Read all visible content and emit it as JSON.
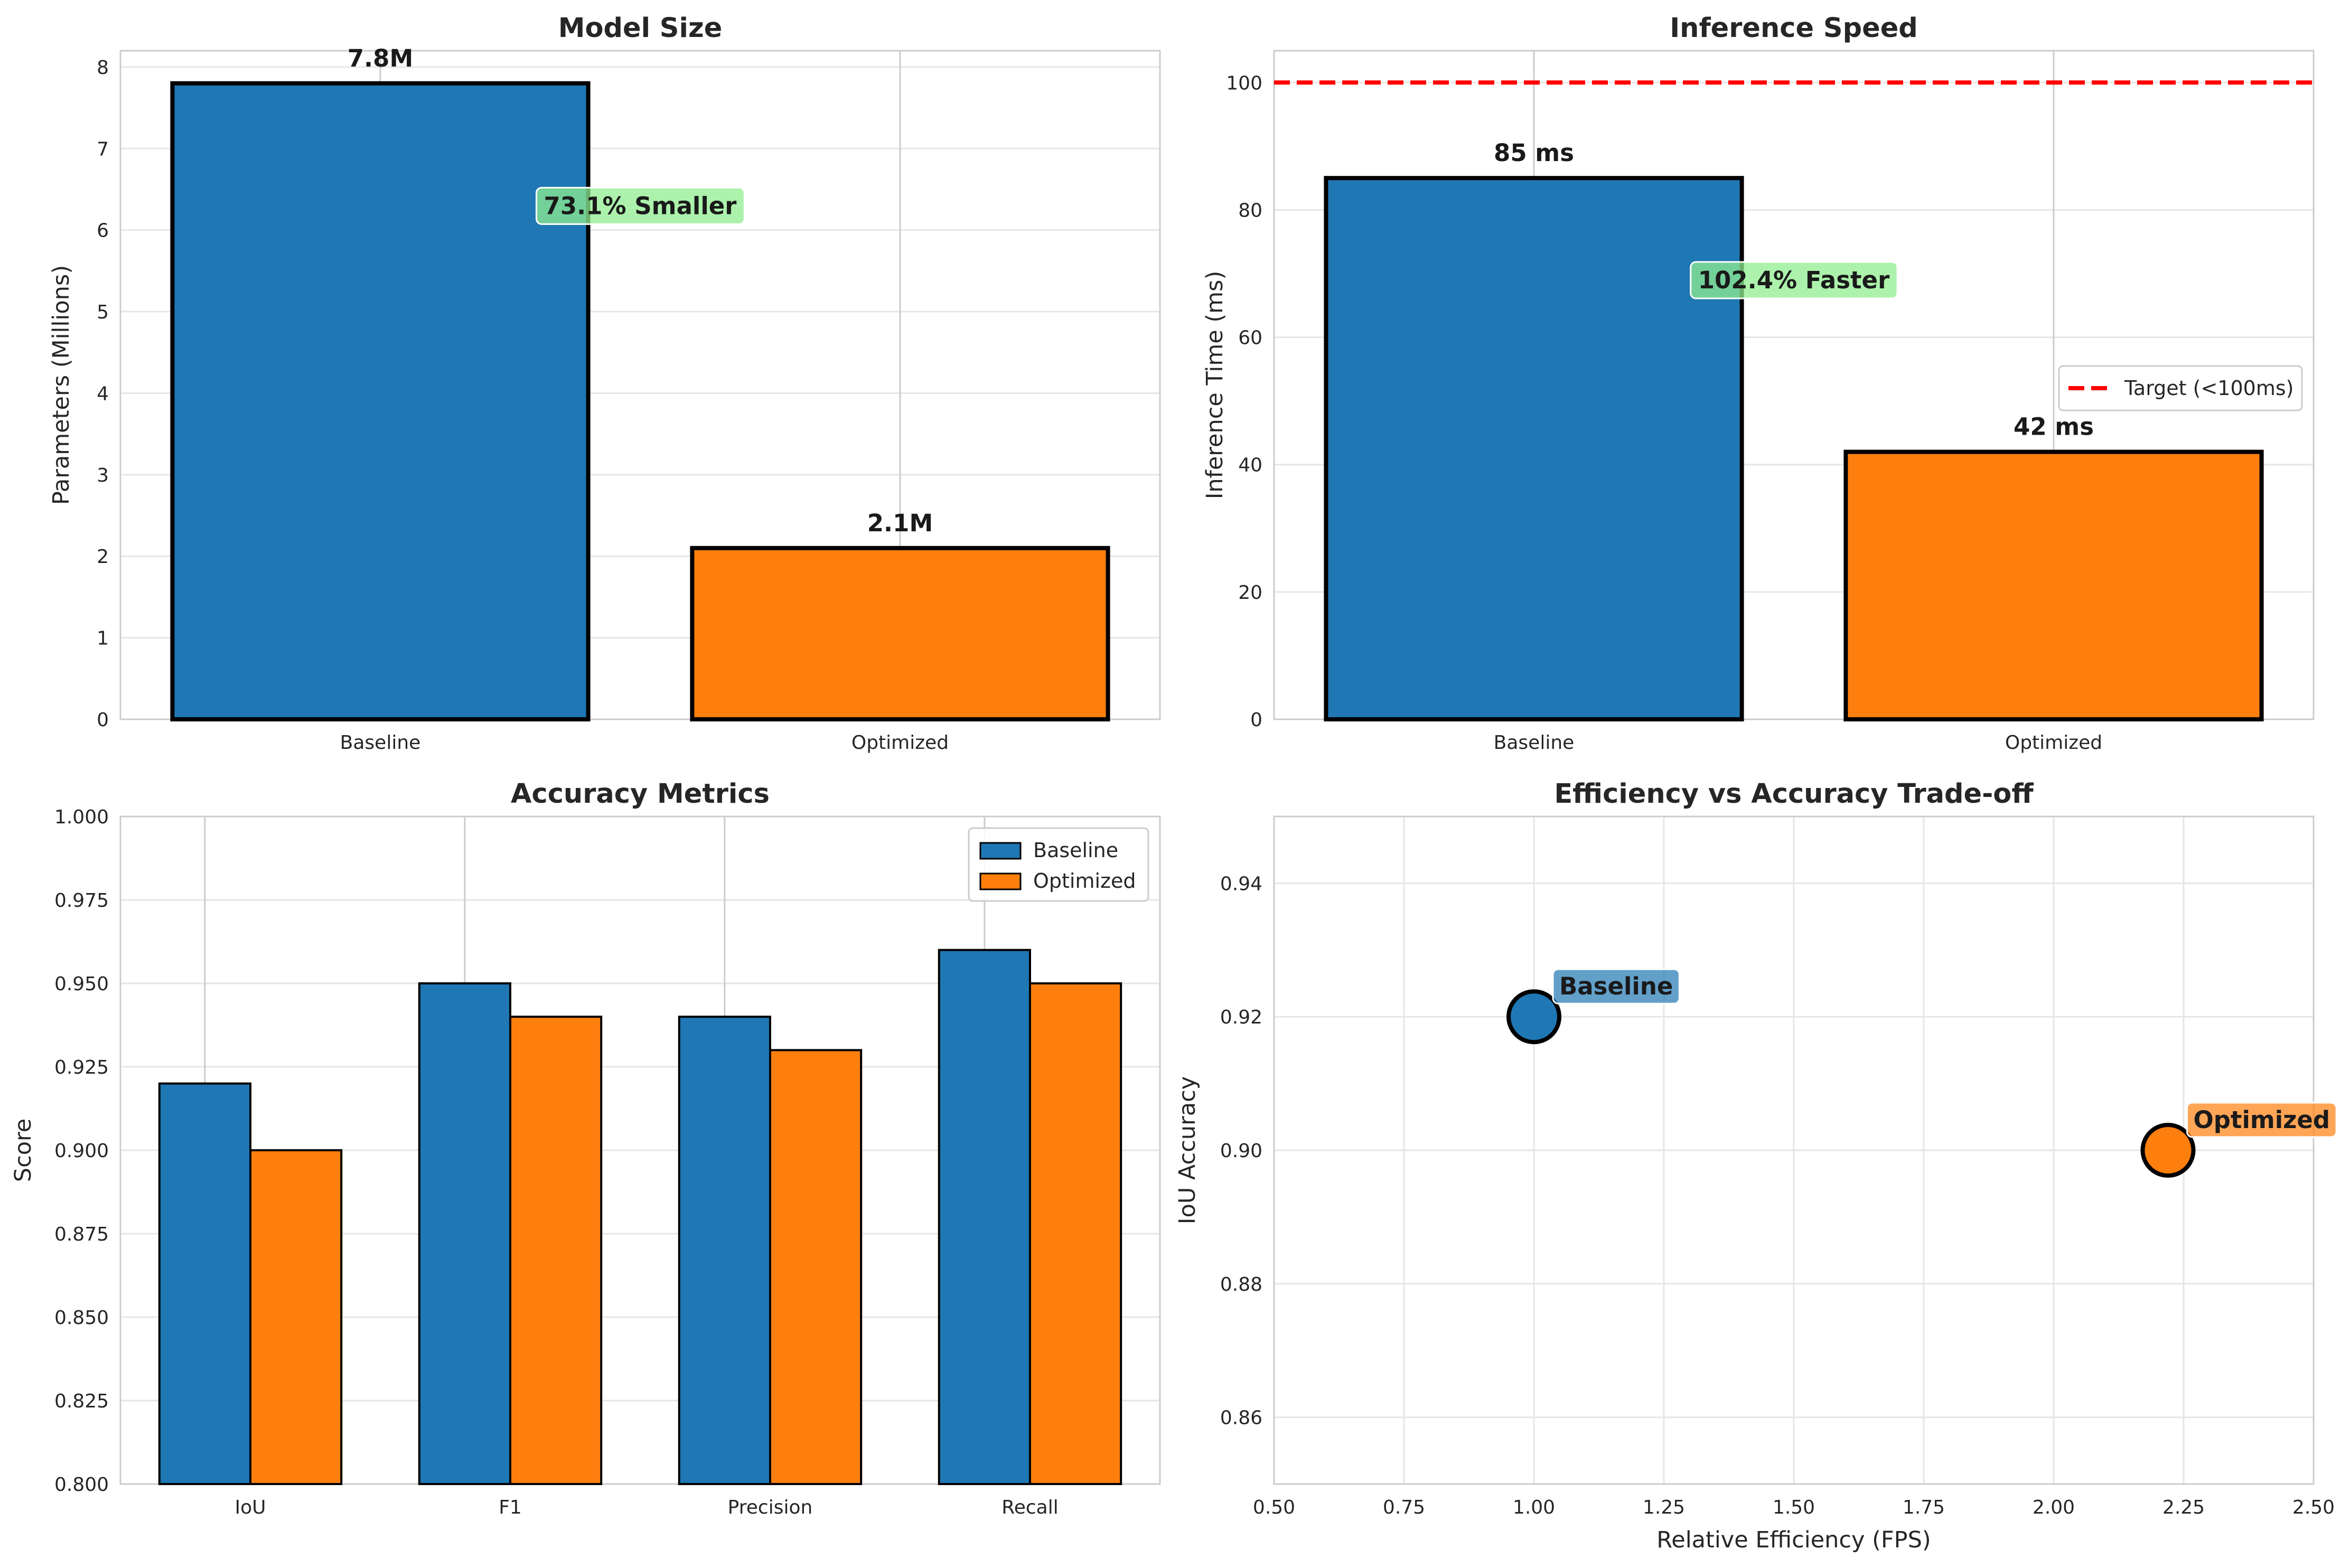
{
  "colors": {
    "baseline": "#1f77b4",
    "optimized": "#ff7f0e",
    "target": "#ff0000",
    "annotation": "#90ee90"
  },
  "chart_data": [
    {
      "id": "size",
      "type": "bar",
      "title": "Model Size",
      "ylabel": "Parameters (Millions)",
      "xlabel": "",
      "categories": [
        "Baseline",
        "Optimized"
      ],
      "values": [
        7.8,
        2.1
      ],
      "value_labels": [
        "7.8M",
        "2.1M"
      ],
      "ylim": [
        0,
        8.2
      ],
      "yticks": [
        0,
        1,
        2,
        3,
        4,
        5,
        6,
        7,
        8
      ],
      "ytick_labels": [
        "0",
        "1",
        "2",
        "3",
        "4",
        "5",
        "6",
        "7",
        "8"
      ],
      "annotation": {
        "text": "73.1% Smaller",
        "x": 0.5,
        "y": 6.3
      },
      "grid": true
    },
    {
      "id": "speed",
      "type": "bar",
      "title": "Inference Speed",
      "ylabel": "Inference Time (ms)",
      "xlabel": "",
      "categories": [
        "Baseline",
        "Optimized"
      ],
      "values": [
        85,
        42
      ],
      "value_labels": [
        "85 ms",
        "42 ms"
      ],
      "ylim": [
        0,
        105
      ],
      "yticks": [
        0,
        20,
        40,
        60,
        80,
        100
      ],
      "ytick_labels": [
        "0",
        "20",
        "40",
        "60",
        "80",
        "100"
      ],
      "reference_line": {
        "y": 100,
        "label": "Target (<100ms)"
      },
      "annotation": {
        "text": "102.4% Faster",
        "x": 0.5,
        "y": 69
      },
      "legend": "center-right",
      "grid": true
    },
    {
      "id": "accuracy",
      "type": "bar",
      "title": "Accuracy Metrics",
      "ylabel": "Score",
      "xlabel": "",
      "categories": [
        "IoU",
        "F1",
        "Precision",
        "Recall"
      ],
      "series": [
        {
          "name": "Baseline",
          "values": [
            0.92,
            0.95,
            0.94,
            0.96
          ]
        },
        {
          "name": "Optimized",
          "values": [
            0.9,
            0.94,
            0.93,
            0.95
          ]
        }
      ],
      "ylim": [
        0.8,
        1.0
      ],
      "yticks": [
        0.8,
        0.825,
        0.85,
        0.875,
        0.9,
        0.925,
        0.95,
        0.975,
        1.0
      ],
      "ytick_labels": [
        "0.800",
        "0.825",
        "0.850",
        "0.875",
        "0.900",
        "0.925",
        "0.950",
        "0.975",
        "1.000"
      ],
      "legend": "top-right",
      "grid": true
    },
    {
      "id": "tradeoff",
      "type": "scatter",
      "title": "Efficiency vs Accuracy Trade-off",
      "xlabel": "Relative Efficiency (FPS)",
      "ylabel": "IoU Accuracy",
      "points": [
        {
          "label": "Baseline",
          "x": 1.0,
          "y": 0.92
        },
        {
          "label": "Optimized",
          "x": 2.22,
          "y": 0.9
        }
      ],
      "xlim": [
        0.5,
        2.5
      ],
      "ylim": [
        0.85,
        0.95
      ],
      "xticks": [
        0.5,
        0.75,
        1.0,
        1.25,
        1.5,
        1.75,
        2.0,
        2.25,
        2.5
      ],
      "xtick_labels": [
        "0.50",
        "0.75",
        "1.00",
        "1.25",
        "1.50",
        "1.75",
        "2.00",
        "2.25",
        "2.50"
      ],
      "yticks": [
        0.86,
        0.88,
        0.9,
        0.92,
        0.94
      ],
      "ytick_labels": [
        "0.86",
        "0.88",
        "0.90",
        "0.92",
        "0.94"
      ],
      "grid": true
    }
  ]
}
